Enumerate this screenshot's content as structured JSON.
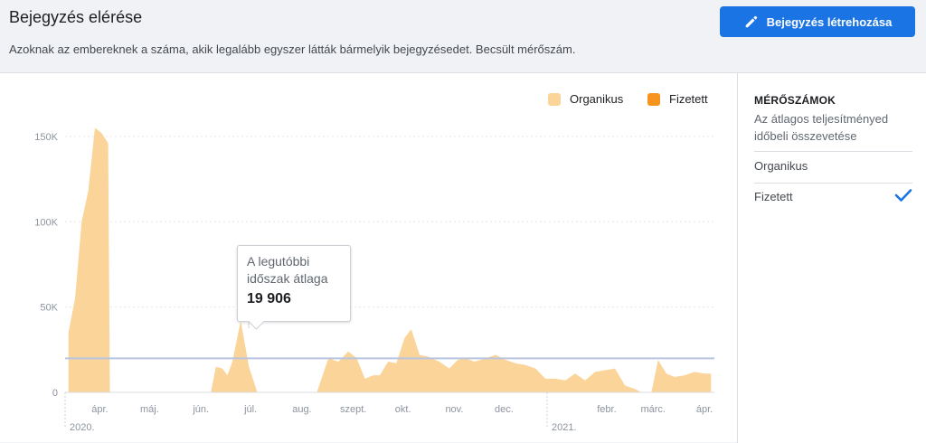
{
  "header": {
    "title": "Bejegyzés elérése",
    "subtitle": "Azoknak az embereknek a száma, akik legalább egyszer látták bármelyik bejegyzésedet. Becsült mérőszám.",
    "create_button": "Bejegyzés létrehozása",
    "create_icon": "pencil-icon"
  },
  "legend": {
    "organic": "Organikus",
    "paid": "Fizetett"
  },
  "tooltip": {
    "label": "A legutóbbi időszak átlaga",
    "value": "19 906"
  },
  "sidebar": {
    "title": "MÉRŐSZÁMOK",
    "description": "Az átlagos teljesítményed időbeli összevetése",
    "items": [
      {
        "label": "Organikus",
        "checked": false
      },
      {
        "label": "Fizetett",
        "checked": true
      }
    ],
    "check_icon": "checkmark-icon"
  },
  "colors": {
    "organic": "#fad499",
    "paid": "#f7941d",
    "average_line": "#b8c4e0",
    "accent": "#1b74e4"
  },
  "chart_data": {
    "type": "area",
    "series": [
      {
        "name": "Organikus",
        "points": [
          [
            "2020-03-20",
            35000
          ],
          [
            "2020-03-24",
            55000
          ],
          [
            "2020-03-28",
            100000
          ],
          [
            "2020-04-01",
            118000
          ],
          [
            "2020-04-05",
            155000
          ],
          [
            "2020-04-09",
            152000
          ],
          [
            "2020-04-13",
            146000
          ],
          [
            "2020-04-14",
            0
          ],
          [
            "2020-06-14",
            0
          ],
          [
            "2020-06-17",
            15000
          ],
          [
            "2020-06-21",
            14000
          ],
          [
            "2020-06-24",
            10000
          ],
          [
            "2020-06-27",
            18000
          ],
          [
            "2020-07-02",
            42000
          ],
          [
            "2020-07-07",
            15000
          ],
          [
            "2020-07-12",
            0
          ],
          [
            "2020-08-17",
            0
          ],
          [
            "2020-08-24",
            20000
          ],
          [
            "2020-08-30",
            18000
          ],
          [
            "2020-09-05",
            24000
          ],
          [
            "2020-09-10",
            20000
          ],
          [
            "2020-09-15",
            8000
          ],
          [
            "2020-09-20",
            10000
          ],
          [
            "2020-09-24",
            10000
          ],
          [
            "2020-09-29",
            18000
          ],
          [
            "2020-10-04",
            17000
          ],
          [
            "2020-10-09",
            32000
          ],
          [
            "2020-10-13",
            37000
          ],
          [
            "2020-10-18",
            22000
          ],
          [
            "2020-10-23",
            21000
          ],
          [
            "2020-10-30",
            18000
          ],
          [
            "2020-11-05",
            14000
          ],
          [
            "2020-11-10",
            19000
          ],
          [
            "2020-11-15",
            20000
          ],
          [
            "2020-11-20",
            18000
          ],
          [
            "2020-11-27",
            20000
          ],
          [
            "2020-12-03",
            22000
          ],
          [
            "2020-12-09",
            19000
          ],
          [
            "2020-12-15",
            17000
          ],
          [
            "2020-12-21",
            16000
          ],
          [
            "2020-12-27",
            14000
          ],
          [
            "2021-01-02",
            8000
          ],
          [
            "2021-01-08",
            8000
          ],
          [
            "2021-01-14",
            7000
          ],
          [
            "2021-01-20",
            11000
          ],
          [
            "2021-01-26",
            7000
          ],
          [
            "2021-02-01",
            12000
          ],
          [
            "2021-02-07",
            13000
          ],
          [
            "2021-02-13",
            14000
          ],
          [
            "2021-02-19",
            4000
          ],
          [
            "2021-02-25",
            2000
          ],
          [
            "2021-03-01",
            0
          ],
          [
            "2021-03-07",
            0
          ],
          [
            "2021-03-11",
            19000
          ],
          [
            "2021-03-16",
            11000
          ],
          [
            "2021-03-21",
            9000
          ],
          [
            "2021-03-27",
            10000
          ],
          [
            "2021-04-02",
            12000
          ],
          [
            "2021-04-08",
            11000
          ],
          [
            "2021-04-12",
            11000
          ]
        ]
      },
      {
        "name": "Fizetett",
        "points": []
      }
    ],
    "average": 19906,
    "x_ticks": [
      [
        "2020-04-08",
        "ápr."
      ],
      [
        "2020-05-08",
        "máj."
      ],
      [
        "2020-06-08",
        "jún."
      ],
      [
        "2020-07-08",
        "júl."
      ],
      [
        "2020-08-08",
        "aug."
      ],
      [
        "2020-09-08",
        "szept."
      ],
      [
        "2020-10-08",
        "okt."
      ],
      [
        "2020-11-08",
        "nov."
      ],
      [
        "2020-12-08",
        "dec."
      ],
      [
        "2021-02-08",
        "febr."
      ],
      [
        "2021-03-08",
        "márc."
      ],
      [
        "2021-04-08",
        "ápr."
      ]
    ],
    "years": [
      [
        "2020-03-18",
        "2020."
      ],
      [
        "2021-01-03",
        "2021."
      ]
    ],
    "y_ticks": [
      [
        0,
        "0"
      ],
      [
        50000,
        "50K"
      ],
      [
        100000,
        "100K"
      ],
      [
        150000,
        "150K"
      ]
    ],
    "xlim": [
      "2020-03-18",
      "2021-04-14"
    ],
    "ylim": [
      0,
      160000
    ],
    "grid": true,
    "legend_position": "top-right"
  }
}
